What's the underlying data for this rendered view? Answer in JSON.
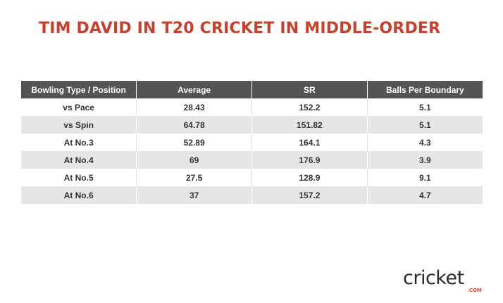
{
  "title": "TIM DAVID IN T20 CRICKET IN MIDDLE-ORDER",
  "chart_data": {
    "type": "table",
    "title": "TIM DAVID IN T20 CRICKET IN MIDDLE-ORDER",
    "columns": [
      "Bowling Type / Position",
      "Average",
      "SR",
      "Balls Per Boundary"
    ],
    "rows": [
      [
        "vs Pace",
        "28.43",
        "152.2",
        "5.1"
      ],
      [
        "vs Spin",
        "64.78",
        "151.82",
        "5.1"
      ],
      [
        "At No.3",
        "52.89",
        "164.1",
        "4.3"
      ],
      [
        "At No.4",
        "69",
        "176.9",
        "3.9"
      ],
      [
        "At No.5",
        "27.5",
        "128.9",
        "9.1"
      ],
      [
        "At No.6",
        "37",
        "157.2",
        "4.7"
      ]
    ]
  },
  "logo": {
    "word": "cricket",
    "domain": ".COM"
  },
  "colors": {
    "title": "#c8402c",
    "header_bg": "#545454",
    "alt_row": "#e6e6e6",
    "accent": "#e8472b"
  }
}
